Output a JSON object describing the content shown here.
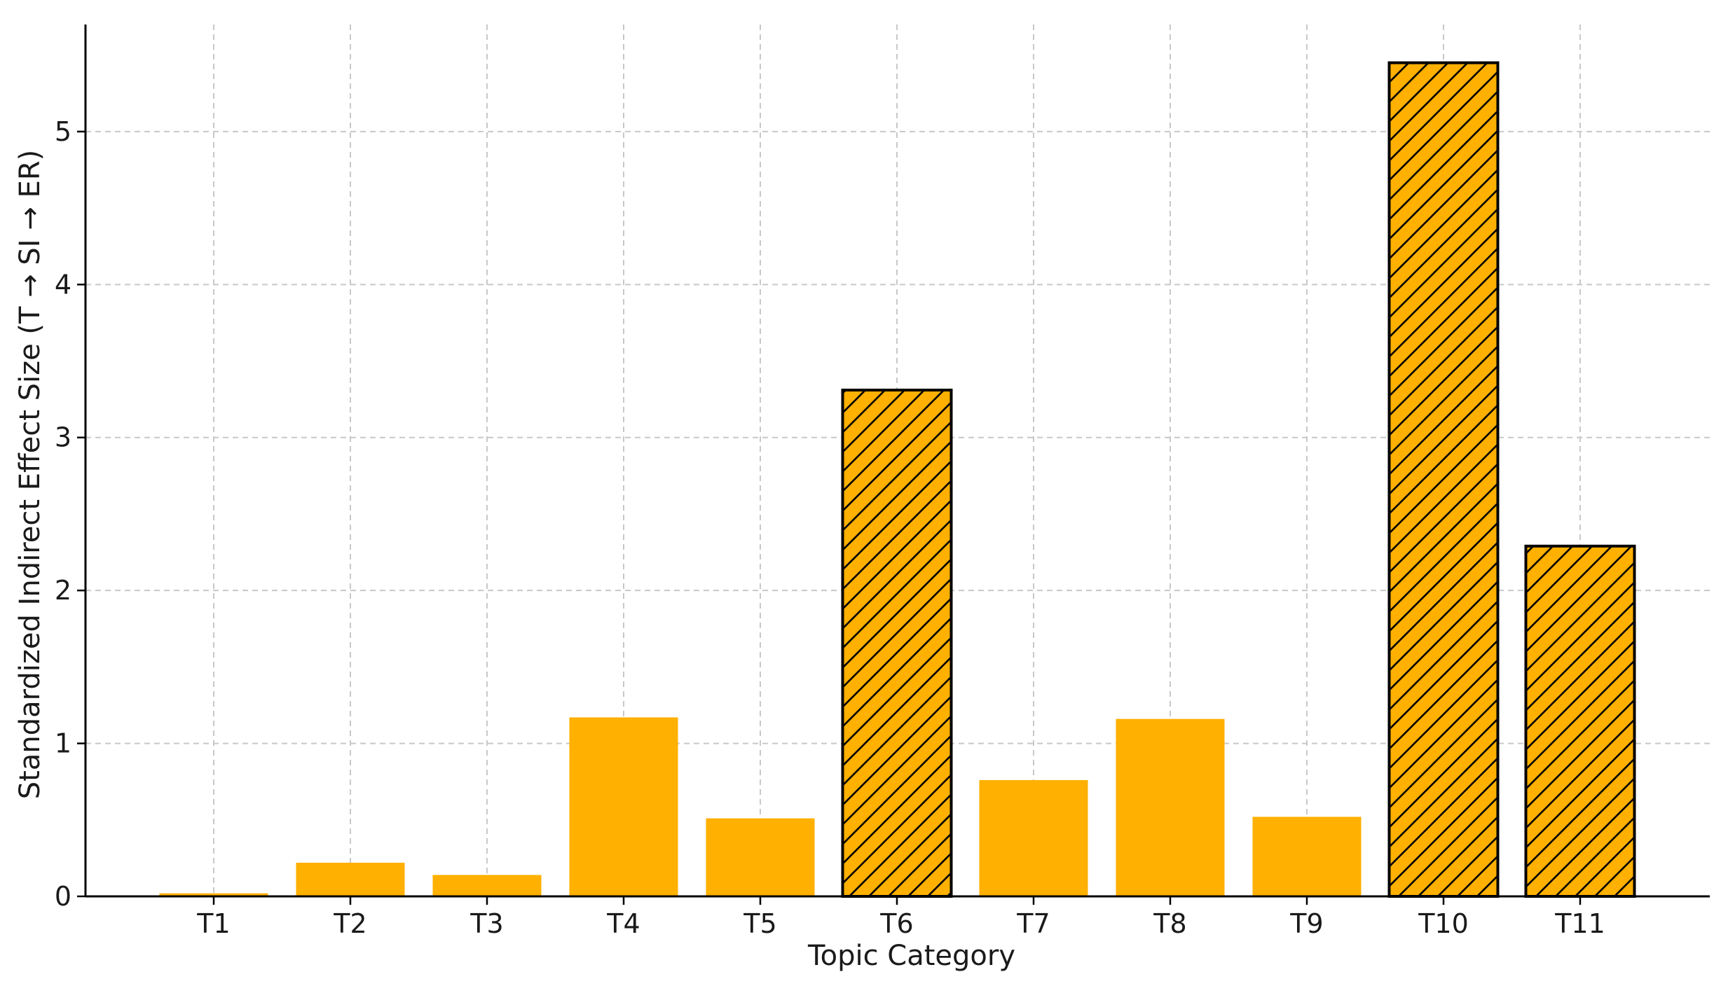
{
  "chart_data": {
    "type": "bar",
    "title": "",
    "xlabel": "Topic Category",
    "ylabel": "Standardized Indirect Effect Size (T → SI → ER)",
    "categories": [
      "T1",
      "T2",
      "T3",
      "T4",
      "T5",
      "T6",
      "T7",
      "T8",
      "T9",
      "T10",
      "T11"
    ],
    "values": [
      0.02,
      0.22,
      0.14,
      1.17,
      0.51,
      3.31,
      0.76,
      1.16,
      0.52,
      5.45,
      2.29
    ],
    "highlighted": [
      false,
      false,
      false,
      false,
      false,
      true,
      false,
      false,
      false,
      true,
      true
    ],
    "ylim": [
      0,
      5.7
    ],
    "yticks": [
      0,
      1,
      2,
      3,
      4,
      5
    ],
    "grid": true,
    "bar_color": "#FFB000",
    "highlight_pattern": "diagonal-hatch",
    "highlight_edge_color": "#000000"
  }
}
